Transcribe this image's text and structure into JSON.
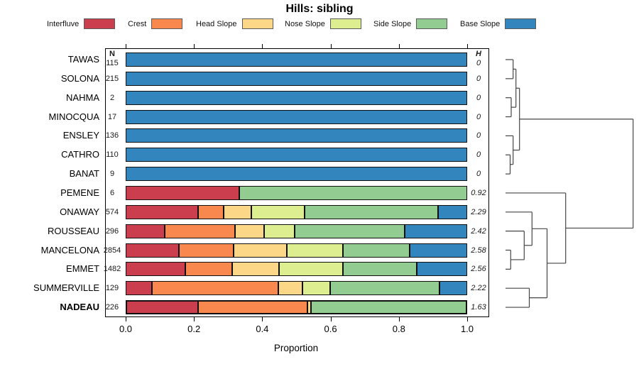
{
  "title": "Hills: sibling",
  "columns": {
    "n": "N",
    "h": "H"
  },
  "xaxis": {
    "label": "Proportion",
    "ticks": [
      "0.0",
      "0.2",
      "0.4",
      "0.6",
      "0.8",
      "1.0"
    ]
  },
  "legend": {
    "items": [
      {
        "label": "Interfluve",
        "color": "#CA3E4D"
      },
      {
        "label": "Crest",
        "color": "#F8884E"
      },
      {
        "label": "Head Slope",
        "color": "#FBD787"
      },
      {
        "label": "Nose Slope",
        "color": "#DDEE90"
      },
      {
        "label": "Side Slope",
        "color": "#92CC90"
      },
      {
        "label": "Base Slope",
        "color": "#3385BE"
      }
    ]
  },
  "chart_data": {
    "type": "bar",
    "orientation": "horizontal",
    "stacked": true,
    "title": "Hills: sibling",
    "xlabel": "Proportion",
    "xlim": [
      0,
      1
    ],
    "classes": [
      "Interfluve",
      "Crest",
      "Head Slope",
      "Nose Slope",
      "Side Slope",
      "Base Slope"
    ],
    "colors": [
      "#CA3E4D",
      "#F8884E",
      "#FBD787",
      "#DDEE90",
      "#92CC90",
      "#3385BE"
    ],
    "rows": [
      {
        "name": "TAWAS",
        "n": 115,
        "h": "0",
        "values": [
          0,
          0,
          0,
          0,
          0,
          1.0
        ]
      },
      {
        "name": "SOLONA",
        "n": 215,
        "h": "0",
        "values": [
          0,
          0,
          0,
          0,
          0,
          1.0
        ]
      },
      {
        "name": "NAHMA",
        "n": 2,
        "h": "0",
        "values": [
          0,
          0,
          0,
          0,
          0,
          1.0
        ]
      },
      {
        "name": "MINOCQUA",
        "n": 17,
        "h": "0",
        "values": [
          0,
          0,
          0,
          0,
          0,
          1.0
        ]
      },
      {
        "name": "ENSLEY",
        "n": 136,
        "h": "0",
        "values": [
          0,
          0,
          0,
          0,
          0,
          1.0
        ]
      },
      {
        "name": "CATHRO",
        "n": 110,
        "h": "0",
        "values": [
          0,
          0,
          0,
          0,
          0,
          1.0
        ]
      },
      {
        "name": "BANAT",
        "n": 9,
        "h": "0",
        "values": [
          0,
          0,
          0,
          0,
          0,
          1.0
        ]
      },
      {
        "name": "PEMENE",
        "n": 6,
        "h": "0.92",
        "values": [
          0.333,
          0,
          0,
          0,
          0.667,
          0
        ]
      },
      {
        "name": "ONAWAY",
        "n": 574,
        "h": "2.29",
        "values": [
          0.213,
          0.076,
          0.081,
          0.157,
          0.392,
          0.081
        ]
      },
      {
        "name": "ROUSSEAU",
        "n": 296,
        "h": "2.42",
        "values": [
          0.115,
          0.206,
          0.086,
          0.089,
          0.325,
          0.179
        ]
      },
      {
        "name": "MANCELONA",
        "n": 2854,
        "h": "2.58",
        "values": [
          0.156,
          0.162,
          0.156,
          0.164,
          0.198,
          0.164
        ]
      },
      {
        "name": "EMMET",
        "n": 1482,
        "h": "2.56",
        "values": [
          0.175,
          0.138,
          0.138,
          0.187,
          0.217,
          0.145
        ]
      },
      {
        "name": "SUMMERVILLE",
        "n": 129,
        "h": "2.22",
        "values": [
          0.078,
          0.37,
          0.071,
          0.082,
          0.321,
          0.078
        ]
      },
      {
        "name": "NADEAU",
        "n": 226,
        "h": "1.63",
        "values": [
          0.212,
          0.322,
          0.011,
          0,
          0.455,
          0
        ],
        "highlight": true
      }
    ],
    "dendrogram": {
      "leaf_x": 712,
      "merges": [
        [
          "m1",
          "L0",
          "L1",
          722.7
        ],
        [
          "m2",
          "L2",
          "L3",
          720.0
        ],
        [
          "mCB",
          "L5",
          "L6",
          718.5
        ],
        [
          "m5",
          "L4",
          "mCB",
          722.7
        ],
        [
          "m3",
          "m1",
          "m2",
          726.7
        ],
        [
          "m6",
          "m3",
          "m5",
          731.7
        ],
        [
          "m7",
          "L10",
          "L11",
          719.3
        ],
        [
          "m8",
          "L9",
          "m7",
          738.3
        ],
        [
          "m9",
          "L8",
          "m8",
          749.3
        ],
        [
          "m10",
          "L12",
          "L13",
          745.5
        ],
        [
          "m11",
          "m9",
          "m10",
          770.5
        ],
        [
          "m12",
          "L7",
          "m11",
          796.7
        ],
        [
          "root",
          "m6",
          "m12",
          891.7
        ]
      ]
    }
  }
}
